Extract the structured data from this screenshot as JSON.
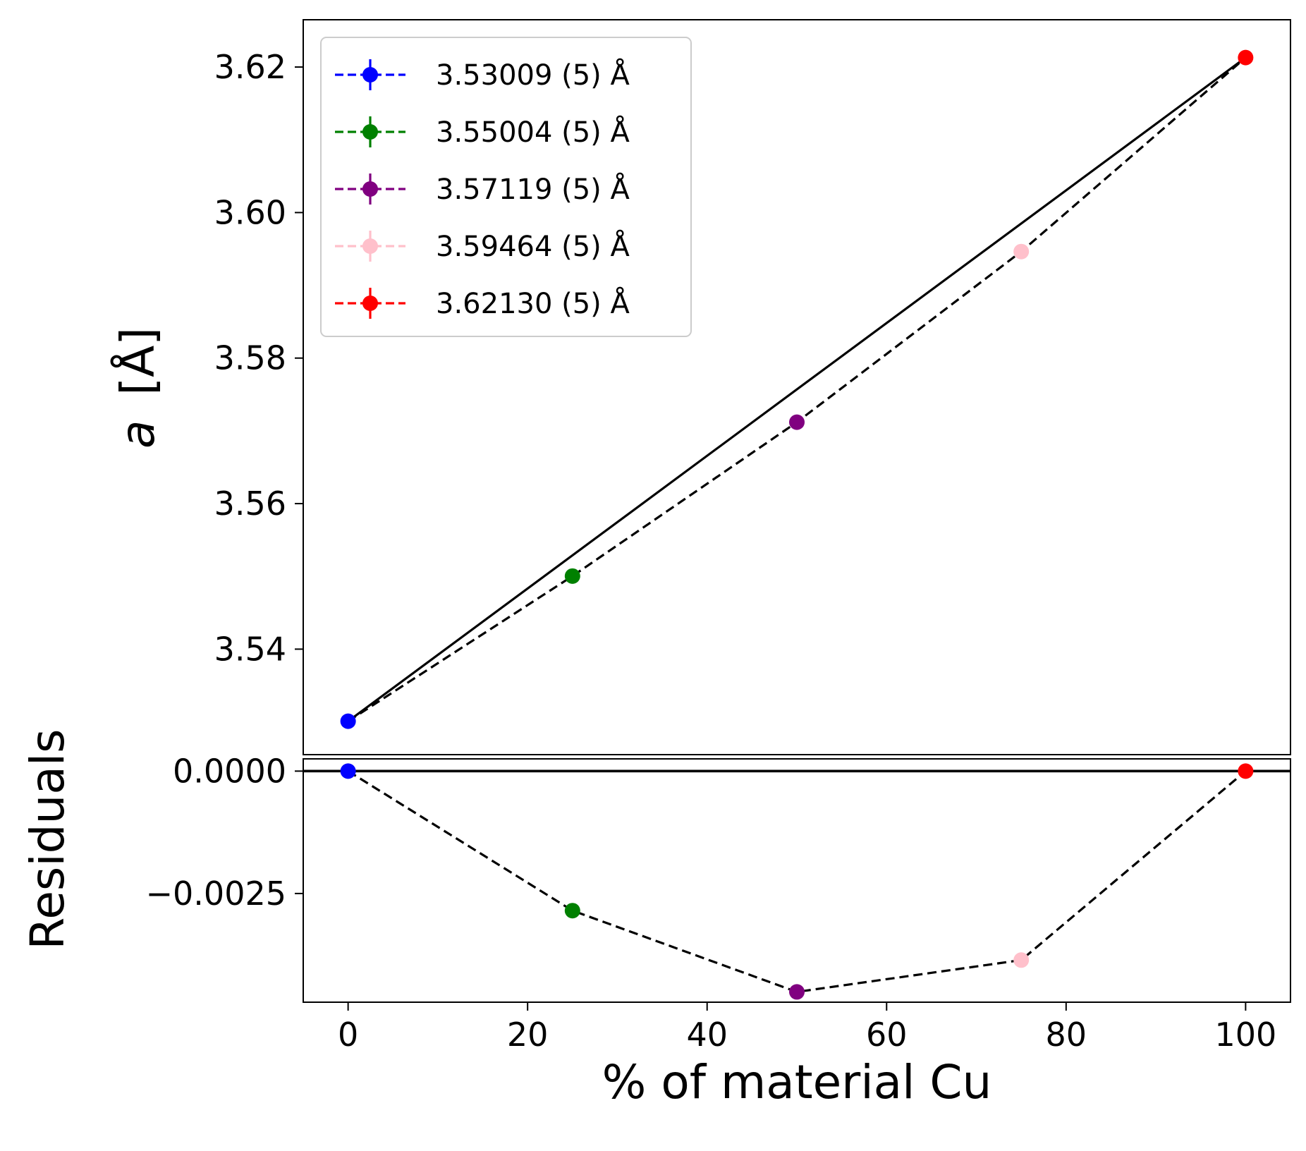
{
  "chart_data": [
    {
      "type": "line",
      "panel": "main",
      "xlabel": "",
      "ylabel": "a [Å]",
      "ylabel_var": "a",
      "ylabel_unit": "[Å]",
      "xlim": [
        -5,
        105
      ],
      "ylim": [
        3.5255,
        3.6265
      ],
      "xticks": [
        0,
        20,
        40,
        60,
        80,
        100
      ],
      "yticks": [
        3.54,
        3.56,
        3.58,
        3.6,
        3.62
      ],
      "ytick_labels": [
        "3.54",
        "3.56",
        "3.58",
        "3.60",
        "3.62"
      ],
      "grid": false,
      "legend_position": "top-left",
      "points": [
        {
          "x": 0,
          "y": 3.53009,
          "color": "#0000ff",
          "label": "3.53009 (5) Å"
        },
        {
          "x": 25,
          "y": 3.55004,
          "color": "#008000",
          "label": "3.55004 (5) Å"
        },
        {
          "x": 50,
          "y": 3.57119,
          "color": "#800080",
          "label": "3.57119 (5) Å"
        },
        {
          "x": 75,
          "y": 3.59464,
          "color": "#ffc0cb",
          "label": "3.59464 (5) Å"
        },
        {
          "x": 100,
          "y": 3.6213,
          "color": "#ff0000",
          "label": "3.62130 (5) Å"
        }
      ],
      "reference_line": {
        "x": [
          0,
          100
        ],
        "y": [
          3.53009,
          3.6213
        ],
        "style": "solid",
        "color": "#000000"
      },
      "connecting_line": {
        "style": "dashed",
        "color": "#000000"
      }
    },
    {
      "type": "line",
      "panel": "residuals",
      "xlabel": "% of material Cu",
      "ylabel": "Residuals",
      "xlim": [
        -5,
        105
      ],
      "ylim": [
        -0.00472,
        0.00025
      ],
      "xticks": [
        0,
        20,
        40,
        60,
        80,
        100
      ],
      "xtick_labels": [
        "0",
        "20",
        "40",
        "60",
        "80",
        "100"
      ],
      "yticks": [
        0.0,
        -0.0025
      ],
      "ytick_labels": [
        "0.0000",
        "−0.0025"
      ],
      "grid": false,
      "zero_line": {
        "y": 0,
        "style": "solid",
        "color": "#000000"
      },
      "points": [
        {
          "x": 0,
          "y": 0.0,
          "color": "#0000ff"
        },
        {
          "x": 25,
          "y": -0.00285,
          "color": "#008000"
        },
        {
          "x": 50,
          "y": -0.00451,
          "color": "#800080"
        },
        {
          "x": 75,
          "y": -0.00386,
          "color": "#ffc0cb"
        },
        {
          "x": 100,
          "y": 0.0,
          "color": "#ff0000"
        }
      ],
      "connecting_line": {
        "style": "dashed",
        "color": "#000000"
      }
    }
  ]
}
